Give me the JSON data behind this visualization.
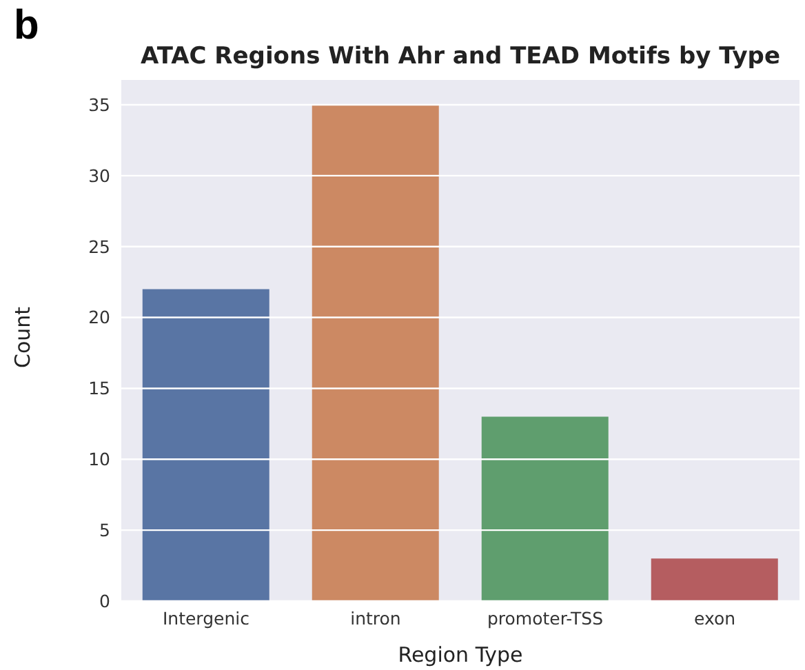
{
  "chart_data": {
    "type": "bar",
    "title": "ATAC Regions With Ahr and TEAD Motifs by Type",
    "xlabel": "Region Type",
    "ylabel": "Count",
    "categories": [
      "Intergenic",
      "intron",
      "promoter-TSS",
      "exon"
    ],
    "values": [
      22,
      35,
      13,
      3
    ],
    "colors": [
      "#5975a4",
      "#cc8963",
      "#5f9e6e",
      "#b55d60"
    ],
    "ylim": [
      0,
      36.75
    ],
    "yticks": [
      0,
      5,
      10,
      15,
      20,
      25,
      30,
      35
    ],
    "grid": "y",
    "annotations": [
      "b"
    ]
  }
}
